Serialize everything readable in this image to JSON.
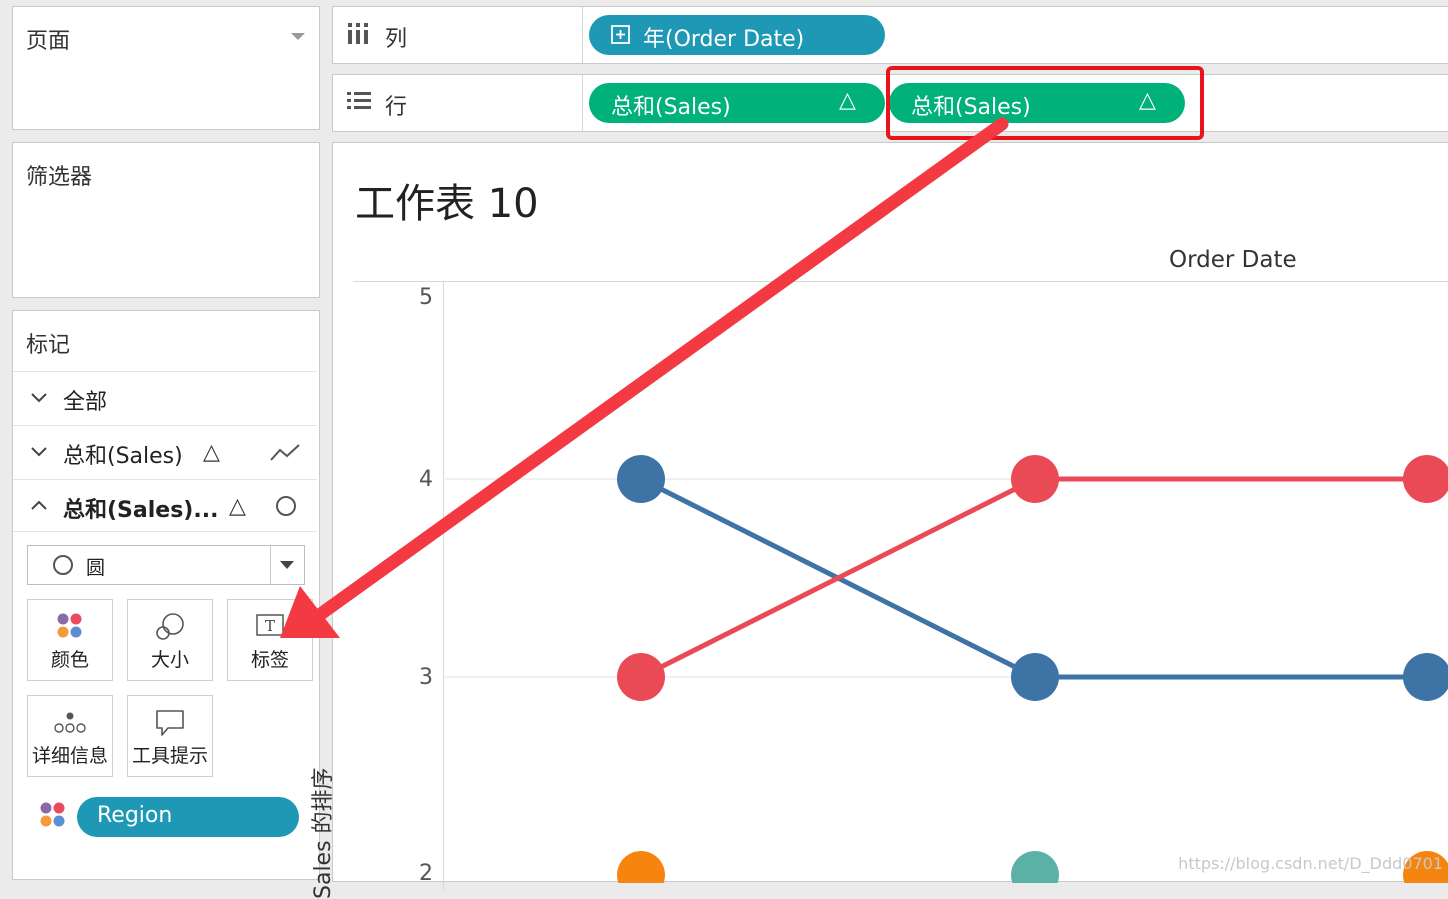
{
  "pages_panel": {
    "title": "页面"
  },
  "filters_panel": {
    "title": "筛选器"
  },
  "marks_panel": {
    "title": "标记",
    "rows": [
      {
        "label": "全部",
        "expanded": false
      },
      {
        "label": "总和(Sales)",
        "delta": "△",
        "mark_icon": "line-icon",
        "expanded": false
      },
      {
        "label": "总和(Sales)...",
        "delta": "△",
        "mark_icon": "circle-icon",
        "expanded": true
      }
    ],
    "mark_type": "圆",
    "buttons": [
      "颜色",
      "大小",
      "标签",
      "详细信息",
      "工具提示"
    ],
    "color_field": "Region"
  },
  "columns_shelf": {
    "label": "列",
    "pill": "年(Order Date)"
  },
  "rows_shelf": {
    "label": "行",
    "pills": [
      "总和(Sales)",
      "总和(Sales)"
    ],
    "delta": "△"
  },
  "sheet": {
    "title": "工作表 10",
    "column_header": "Order Date"
  },
  "colors": {
    "blue_pill": "#1e98b5",
    "green_pill": "#00b27a",
    "series_blue": "#3e73a6",
    "series_red": "#ea4a55",
    "series_orange": "#f5850e",
    "series_teal": "#5bb1a6",
    "annotation_red": "#e8141c"
  },
  "chart_data": {
    "type": "line",
    "ylabel": "Sales 的排序",
    "yticks": [
      "5",
      "4",
      "3",
      "2"
    ],
    "ylim": [
      2,
      5
    ],
    "x": [
      1,
      2,
      3
    ],
    "series": [
      {
        "color": "#3e73a6",
        "values": [
          4,
          3,
          3
        ]
      },
      {
        "color": "#ea4a55",
        "values": [
          3,
          4,
          4
        ]
      },
      {
        "color": "#f5850e",
        "values": [
          2,
          null,
          2
        ]
      },
      {
        "color": "#5bb1a6",
        "values": [
          null,
          2,
          null
        ]
      }
    ]
  },
  "watermark": "https://blog.csdn.net/D_Ddd0701"
}
